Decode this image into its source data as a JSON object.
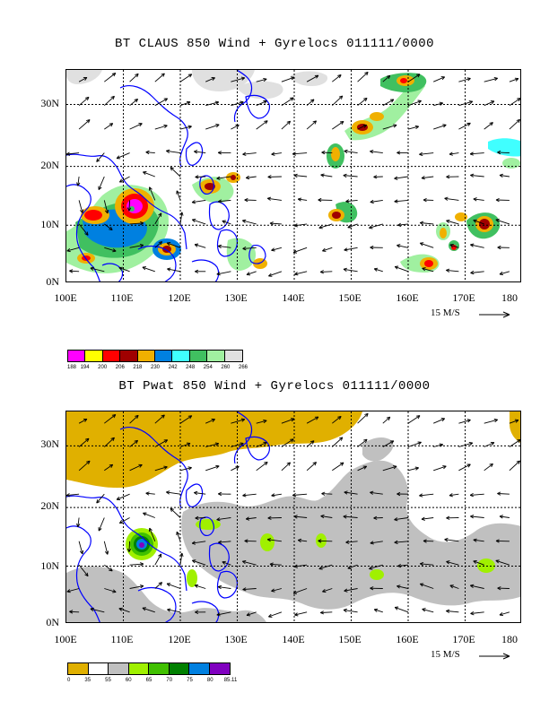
{
  "panels": [
    {
      "id": "claus",
      "title": "BT CLAUS 850 Wind + Gyrelocs 011111/0000",
      "lat_labels": [
        "30N",
        "20N",
        "10N",
        "0N"
      ],
      "lon_labels": [
        "100E",
        "110E",
        "120E",
        "130E",
        "140E",
        "150E",
        "160E",
        "170E",
        "180"
      ],
      "ref_vector": "15 M/S",
      "legend": {
        "colors": [
          "#ff00ff",
          "#ffff00",
          "#ff0000",
          "#a00000",
          "#f0b000",
          "#0080e0",
          "#40ffff",
          "#40c060",
          "#a0f0a0",
          "#e0e0e0"
        ],
        "labels": [
          "188",
          "194",
          "200",
          "206",
          "218",
          "230",
          "242",
          "248",
          "254",
          "260",
          "266"
        ]
      },
      "land_color": "#0000ff"
    },
    {
      "id": "pwat",
      "title": "BT Pwat 850 Wind + Gyrelocs 011111/0000",
      "lat_labels": [
        "30N",
        "20N",
        "10N",
        "0N"
      ],
      "lon_labels": [
        "100E",
        "110E",
        "120E",
        "130E",
        "140E",
        "150E",
        "160E",
        "170E",
        "180"
      ],
      "ref_vector": "15 M/S",
      "legend": {
        "colors": [
          "#e0b000",
          "#ffffff",
          "#c0c0c0",
          "#a0f000",
          "#40c000",
          "#008000",
          "#0080e0",
          "#8000c0"
        ],
        "labels": [
          "0",
          "35",
          "55",
          "60",
          "65",
          "70",
          "75",
          "80",
          "85.11"
        ]
      },
      "land_color": "#0000ff"
    }
  ]
}
